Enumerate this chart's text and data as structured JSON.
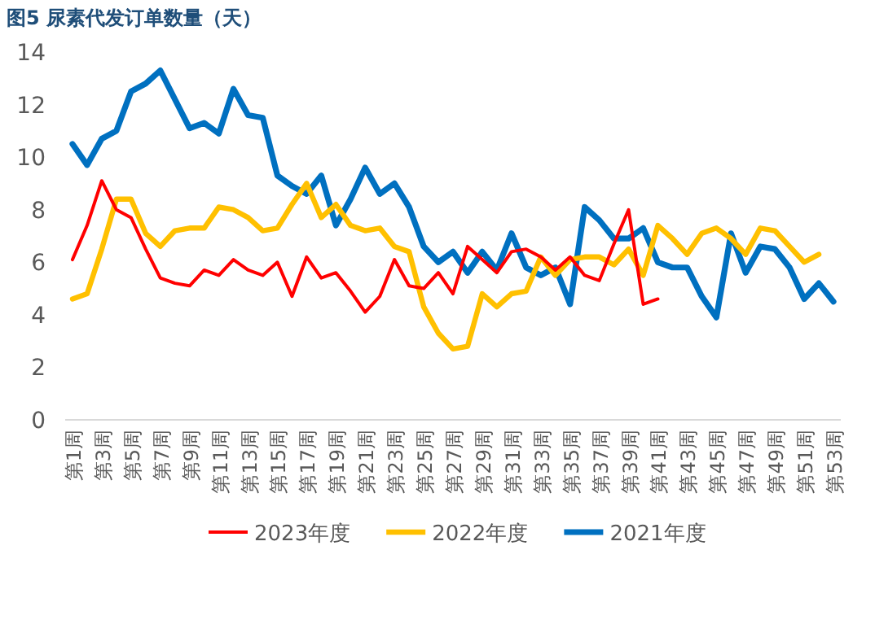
{
  "chart_data": {
    "type": "line",
    "title": "图5 尿素代发订单数量（天）",
    "categories": [
      "第1周",
      null,
      "第3周",
      null,
      "第5周",
      null,
      "第7周",
      null,
      "第9周",
      null,
      "第11周",
      null,
      "第13周",
      null,
      "第15周",
      null,
      "第17周",
      null,
      "第19周",
      null,
      "第21周",
      null,
      "第23周",
      null,
      "第25周",
      null,
      "第27周",
      null,
      "第29周",
      null,
      "第31周",
      null,
      "第33周",
      null,
      "第35周",
      null,
      "第37周",
      null,
      "第39周",
      null,
      "第41周",
      null,
      "第43周",
      null,
      "第45周",
      null,
      "第47周",
      null,
      "第49周",
      null,
      "第51周",
      null,
      "第53周"
    ],
    "series": [
      {
        "name": "2023年度",
        "color": "#ff0000",
        "values": [
          6.1,
          7.4,
          9.1,
          8.0,
          7.7,
          6.5,
          5.4,
          5.2,
          5.1,
          5.7,
          5.5,
          6.1,
          5.7,
          5.5,
          6.0,
          4.7,
          6.2,
          5.4,
          5.6,
          4.9,
          4.1,
          4.7,
          6.1,
          5.1,
          5.0,
          5.6,
          4.8,
          6.6,
          6.1,
          5.6,
          6.4,
          6.5,
          6.2,
          5.7,
          6.2,
          5.5,
          5.3,
          6.7,
          8.0,
          4.4,
          4.6,
          null,
          null,
          null,
          null,
          null,
          null,
          null,
          null,
          null,
          null,
          null,
          null
        ]
      },
      {
        "name": "2022年度",
        "color": "#ffc000",
        "values": [
          4.6,
          4.8,
          6.5,
          8.4,
          8.4,
          7.1,
          6.6,
          7.2,
          7.3,
          7.3,
          8.1,
          8.0,
          7.7,
          7.2,
          7.3,
          8.2,
          9.0,
          7.7,
          8.2,
          7.4,
          7.2,
          7.3,
          6.6,
          6.4,
          4.3,
          3.3,
          2.7,
          2.8,
          4.8,
          4.3,
          4.8,
          4.9,
          6.2,
          5.5,
          6.1,
          6.2,
          6.2,
          5.9,
          6.5,
          5.5,
          7.4,
          6.9,
          6.3,
          7.1,
          7.3,
          6.9,
          6.3,
          7.3,
          7.2,
          6.6,
          6.0,
          6.3,
          null
        ]
      },
      {
        "name": "2021年度",
        "color": "#0070c0",
        "values": [
          10.5,
          9.7,
          10.7,
          11.0,
          12.5,
          12.8,
          13.3,
          12.2,
          11.1,
          11.3,
          10.9,
          12.6,
          11.6,
          11.5,
          9.3,
          8.9,
          8.6,
          9.3,
          7.4,
          8.4,
          9.6,
          8.6,
          9.0,
          8.1,
          6.6,
          6.0,
          6.4,
          5.6,
          6.4,
          5.7,
          7.1,
          5.8,
          5.5,
          5.8,
          4.4,
          8.1,
          7.6,
          6.9,
          6.9,
          7.3,
          6.0,
          5.8,
          5.8,
          4.7,
          3.9,
          7.1,
          5.6,
          6.6,
          6.5,
          5.8,
          4.6,
          5.2,
          4.5
        ]
      }
    ],
    "ylim": [
      0,
      14
    ],
    "yticks": [
      0,
      2,
      4,
      6,
      8,
      10,
      12,
      14
    ],
    "grid": false,
    "legend": "bottom",
    "marker": "none",
    "line_style": "solid"
  }
}
